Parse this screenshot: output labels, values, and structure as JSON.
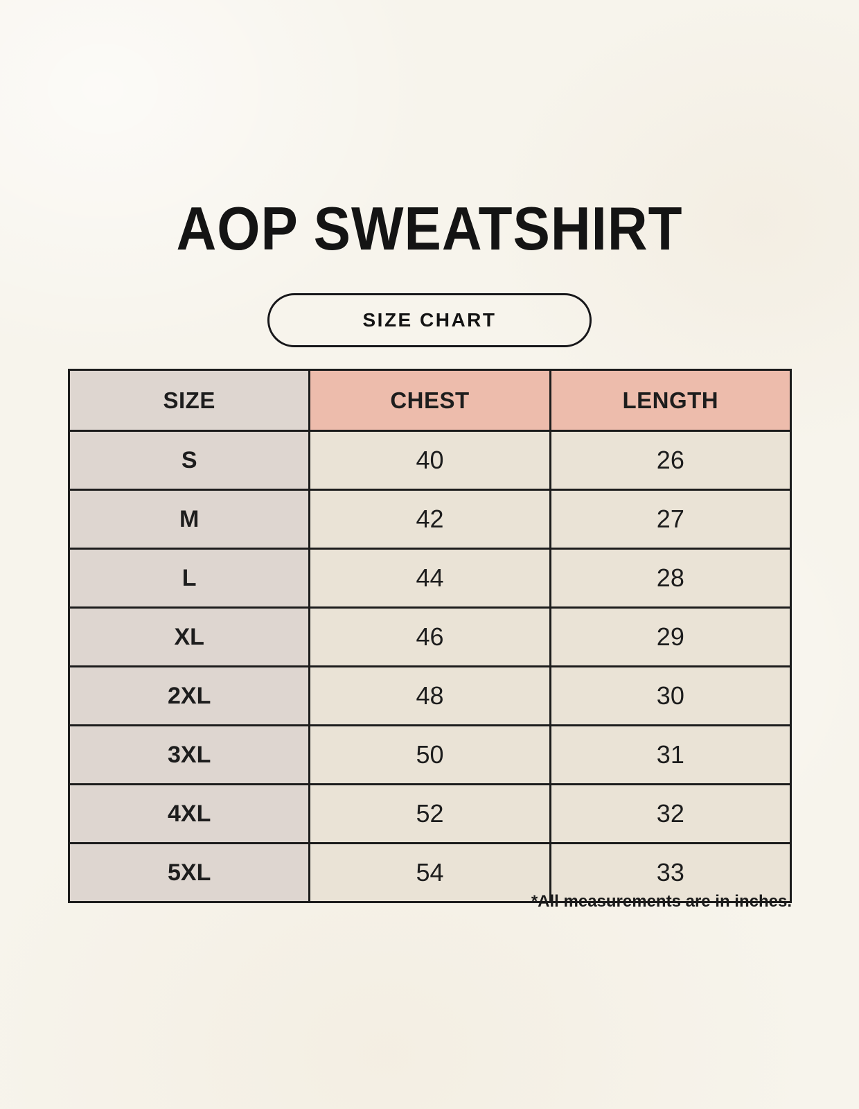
{
  "header": {
    "title": "AOP SWEATSHIRT",
    "size_chart_badge": "SIZE CHART"
  },
  "size_table": {
    "columns": [
      "SIZE",
      "CHEST",
      "LENGTH"
    ],
    "rows": [
      [
        "S",
        "40",
        "26"
      ],
      [
        "M",
        "42",
        "27"
      ],
      [
        "L",
        "44",
        "28"
      ],
      [
        "XL",
        "46",
        "29"
      ],
      [
        "2XL",
        "48",
        "30"
      ],
      [
        "3XL",
        "50",
        "31"
      ],
      [
        "4XL",
        "52",
        "32"
      ],
      [
        "5XL",
        "54",
        "33"
      ]
    ]
  },
  "footnote": "*All measurements are in inches.",
  "colors": {
    "page_background": "#f7f4ec",
    "header_accent": "#edbcac",
    "size_column": "#ded6d0",
    "data_cell": "#eae3d6",
    "border": "#1c1c1c",
    "text": "#1d1d1d"
  }
}
